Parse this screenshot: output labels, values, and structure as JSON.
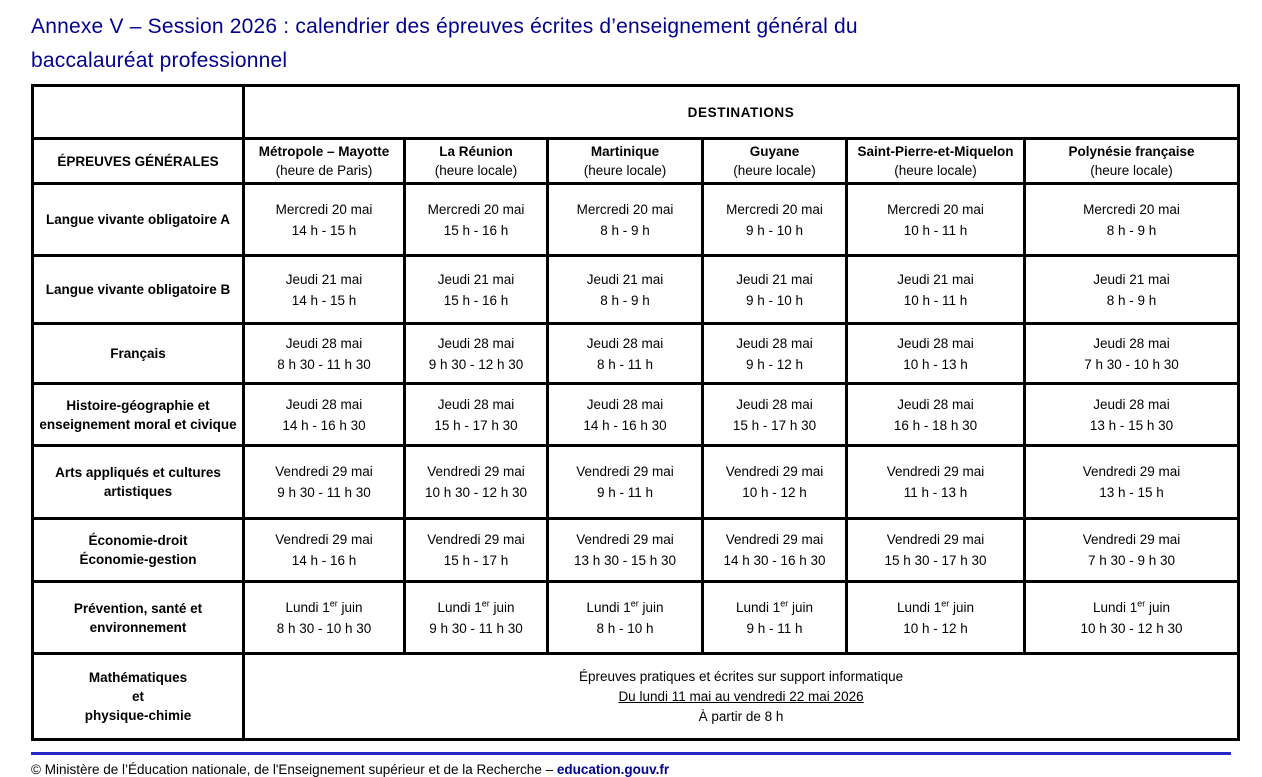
{
  "title": {
    "line1": "Annexe V – Session 2026 : calendrier des épreuves écrites d’enseignement général du",
    "line2": "baccalauréat professionnel"
  },
  "table": {
    "destinations_label": "DESTINATIONS",
    "corner_label": "ÉPREUVES GÉNÉRALES",
    "columns": [
      {
        "name": "Métropole – Mayotte",
        "note": "(heure de Paris)"
      },
      {
        "name": "La Réunion",
        "note": "(heure locale)"
      },
      {
        "name": "Martinique",
        "note": "(heure locale)"
      },
      {
        "name": "Guyane",
        "note": "(heure locale)"
      },
      {
        "name": "Saint-Pierre-et-Miquelon",
        "note": "(heure locale)"
      },
      {
        "name": "Polynésie française",
        "note": "(heure locale)"
      }
    ],
    "rows": [
      {
        "label": "Langue vivante obligatoire A",
        "cells": [
          {
            "date": "Mercredi 20 mai",
            "time": "14 h - 15 h"
          },
          {
            "date": "Mercredi 20 mai",
            "time": "15 h - 16 h"
          },
          {
            "date": "Mercredi 20 mai",
            "time": "8 h - 9 h"
          },
          {
            "date": "Mercredi 20 mai",
            "time": "9 h - 10 h"
          },
          {
            "date": "Mercredi 20 mai",
            "time": "10 h - 11 h"
          },
          {
            "date": "Mercredi 20 mai",
            "time": "8 h - 9 h"
          }
        ]
      },
      {
        "label": "Langue vivante obligatoire B",
        "cells": [
          {
            "date": "Jeudi 21 mai",
            "time": "14 h - 15 h"
          },
          {
            "date": "Jeudi 21 mai",
            "time": "15 h - 16 h"
          },
          {
            "date": "Jeudi 21 mai",
            "time": "8 h - 9 h"
          },
          {
            "date": "Jeudi 21 mai",
            "time": "9 h - 10 h"
          },
          {
            "date": "Jeudi 21 mai",
            "time": "10 h - 11 h"
          },
          {
            "date": "Jeudi 21 mai",
            "time": "8 h - 9 h"
          }
        ]
      },
      {
        "label": "Français",
        "cells": [
          {
            "date": "Jeudi 28 mai",
            "time": "8 h 30 - 11 h 30"
          },
          {
            "date": "Jeudi 28 mai",
            "time": "9 h 30 - 12 h 30"
          },
          {
            "date": "Jeudi 28 mai",
            "time": "8 h - 11 h"
          },
          {
            "date": "Jeudi 28 mai",
            "time": "9 h - 12 h"
          },
          {
            "date": "Jeudi 28 mai",
            "time": "10 h - 13 h"
          },
          {
            "date": "Jeudi 28 mai",
            "time": "7 h 30 - 10 h 30"
          }
        ]
      },
      {
        "label": "Histoire-géographie et enseignement moral et civique",
        "cells": [
          {
            "date": "Jeudi 28 mai",
            "time": "14 h - 16 h 30"
          },
          {
            "date": "Jeudi 28 mai",
            "time": "15 h - 17 h 30"
          },
          {
            "date": "Jeudi 28 mai",
            "time": "14 h - 16 h 30"
          },
          {
            "date": "Jeudi 28 mai",
            "time": "15 h - 17 h 30"
          },
          {
            "date": "Jeudi 28 mai",
            "time": "16 h - 18 h 30"
          },
          {
            "date": "Jeudi 28 mai",
            "time": "13 h - 15 h 30"
          }
        ]
      },
      {
        "label": "Arts appliqués et cultures artistiques",
        "cells": [
          {
            "date": "Vendredi 29 mai",
            "time": "9 h 30 - 11 h 30"
          },
          {
            "date": "Vendredi 29 mai",
            "time": "10 h 30 - 12 h 30"
          },
          {
            "date": "Vendredi 29 mai",
            "time": "9 h - 11 h"
          },
          {
            "date": "Vendredi 29 mai",
            "time": "10 h - 12 h"
          },
          {
            "date": "Vendredi 29 mai",
            "time": "11 h - 13 h"
          },
          {
            "date": "Vendredi 29 mai",
            "time": "13 h - 15 h"
          }
        ]
      },
      {
        "label": "Économie-droit\nÉconomie-gestion",
        "cells": [
          {
            "date": "Vendredi 29 mai",
            "time": "14 h - 16 h"
          },
          {
            "date": "Vendredi 29 mai",
            "time": "15 h - 17 h"
          },
          {
            "date": "Vendredi 29 mai",
            "time": "13 h 30 - 15 h 30"
          },
          {
            "date": "Vendredi 29 mai",
            "time": "14 h 30 - 16 h 30"
          },
          {
            "date": "Vendredi 29 mai",
            "time": "15 h 30 - 17 h 30"
          },
          {
            "date": "Vendredi 29 mai",
            "time": "7 h 30 - 9 h 30"
          }
        ]
      },
      {
        "label": "Prévention, santé et environnement",
        "cells": [
          {
            "date_pre": "Lundi 1",
            "date_sup": "er",
            "date_post": " juin",
            "time": "8 h 30 - 10 h 30"
          },
          {
            "date_pre": "Lundi 1",
            "date_sup": "er",
            "date_post": " juin",
            "time": "9 h 30 - 11 h 30"
          },
          {
            "date_pre": "Lundi 1",
            "date_sup": "er",
            "date_post": " juin",
            "time": "8 h - 10 h"
          },
          {
            "date_pre": "Lundi 1",
            "date_sup": "er",
            "date_post": " juin",
            "time": "9 h - 11 h"
          },
          {
            "date_pre": "Lundi 1",
            "date_sup": "er",
            "date_post": " juin",
            "time": "10 h - 12 h"
          },
          {
            "date_pre": "Lundi 1",
            "date_sup": "er",
            "date_post": " juin",
            "time": "10 h 30 - 12 h 30"
          }
        ]
      },
      {
        "label": "Mathématiques\net\nphysique-chimie",
        "merged": {
          "line1": "Épreuves pratiques et écrites sur support informatique",
          "line2": "Du lundi 11 mai au vendredi 22 mai 2026",
          "line3": "À partir de 8 h"
        }
      }
    ]
  },
  "footer": {
    "text": "© Ministère de l’Éducation nationale, de l'Enseignement supérieur et de la Recherche – ",
    "link": "education.gouv.fr"
  },
  "colors": {
    "title_blue": "#000091",
    "rule_blue": "#2727c8",
    "border_black": "#000000"
  }
}
